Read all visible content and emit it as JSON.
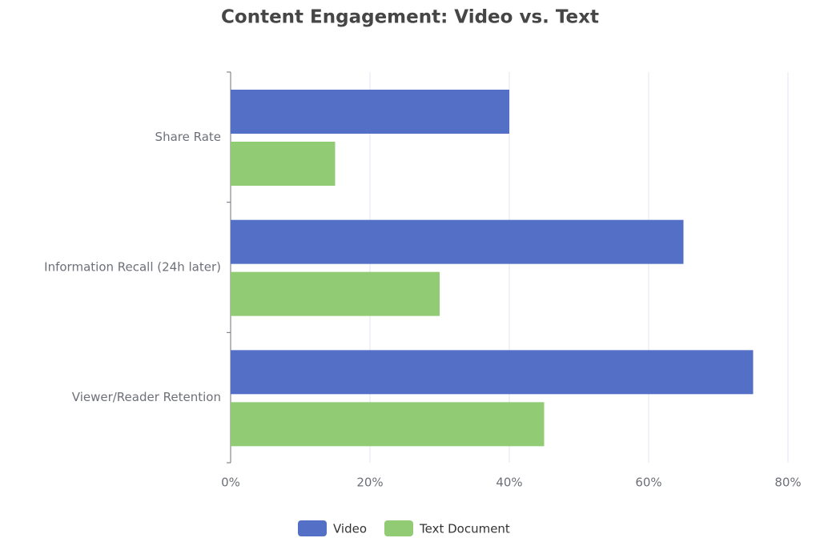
{
  "chart_data": {
    "type": "bar",
    "orientation": "horizontal",
    "title": "Content Engagement: Video vs. Text",
    "categories": [
      "Share Rate",
      "Information Recall (24h later)",
      "Viewer/Reader Retention"
    ],
    "series": [
      {
        "name": "Video",
        "color": "#5470c6",
        "values": [
          40,
          65,
          75
        ]
      },
      {
        "name": "Text Document",
        "color": "#91cc75",
        "values": [
          15,
          30,
          45
        ]
      }
    ],
    "xlim": [
      0,
      80
    ],
    "xticks": [
      {
        "value": 0,
        "label": "0%"
      },
      {
        "value": 20,
        "label": "20%"
      },
      {
        "value": 40,
        "label": "40%"
      },
      {
        "value": 60,
        "label": "60%"
      },
      {
        "value": 80,
        "label": "80%"
      }
    ],
    "grid": true,
    "legend": "bottom"
  }
}
